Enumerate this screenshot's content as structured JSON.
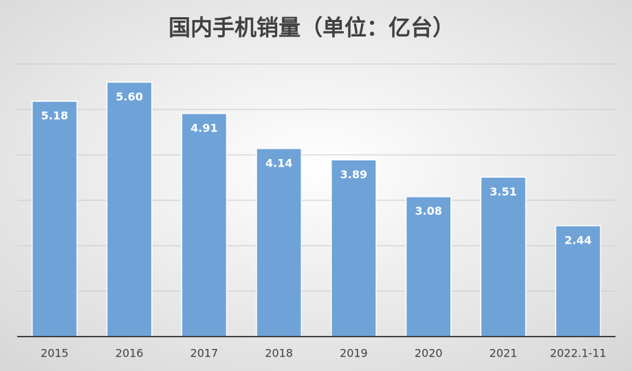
{
  "chart_data": {
    "type": "bar",
    "title": "国内手机销量（单位：亿台）",
    "categories": [
      "2015",
      "2016",
      "2017",
      "2018",
      "2019",
      "2020",
      "2021",
      "2022.1-11"
    ],
    "values": [
      5.18,
      5.6,
      4.91,
      4.14,
      3.89,
      3.08,
      3.51,
      2.44
    ],
    "value_labels": [
      "5.18",
      "5.60",
      "4.91",
      "4.14",
      "3.89",
      "3.08",
      "3.51",
      "2.44"
    ],
    "color": "#6fa3d8",
    "ylim": [
      0,
      6
    ],
    "yticks": [
      0,
      1,
      2,
      3,
      4,
      5,
      6
    ],
    "grid": true
  }
}
